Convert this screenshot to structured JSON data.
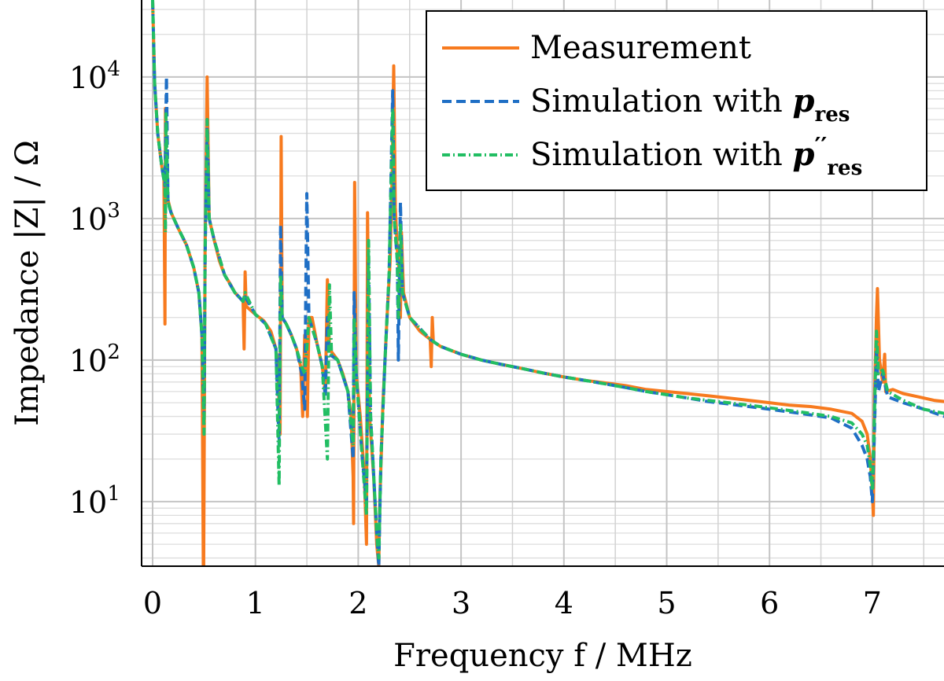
{
  "chart_data": {
    "type": "line",
    "title": "",
    "xlabel": "Frequency f / MHz",
    "ylabel": "Impedance |Z| / Ω",
    "xlim": [
      0,
      7.7
    ],
    "ylim": [
      3.5,
      35000
    ],
    "yscale": "log",
    "grid": true,
    "legend_position": "top-right",
    "x_ticks": [
      "0",
      "1",
      "2",
      "3",
      "4",
      "5",
      "6",
      "7"
    ],
    "y_ticks": [
      {
        "base": "10",
        "exp": "1",
        "value": 10
      },
      {
        "base": "10",
        "exp": "2",
        "value": 100
      },
      {
        "base": "10",
        "exp": "3",
        "value": 1000
      },
      {
        "base": "10",
        "exp": "4",
        "value": 10000
      }
    ],
    "series": [
      {
        "name": "Measurement",
        "legend_label": "Measurement",
        "legend_sub": "",
        "legend_prime": "",
        "color": "#F77A1E",
        "dash": "solid",
        "points": [
          [
            0.0,
            35000
          ],
          [
            0.02,
            9000
          ],
          [
            0.05,
            4000
          ],
          [
            0.09,
            2300
          ],
          [
            0.11,
            1900
          ],
          [
            0.12,
            180
          ],
          [
            0.125,
            6000
          ],
          [
            0.135,
            1500
          ],
          [
            0.18,
            1100
          ],
          [
            0.25,
            850
          ],
          [
            0.33,
            650
          ],
          [
            0.4,
            450
          ],
          [
            0.45,
            300
          ],
          [
            0.48,
            150
          ],
          [
            0.495,
            2.0
          ],
          [
            0.51,
            600
          ],
          [
            0.53,
            10000
          ],
          [
            0.55,
            1000
          ],
          [
            0.6,
            700
          ],
          [
            0.65,
            500
          ],
          [
            0.7,
            400
          ],
          [
            0.75,
            350
          ],
          [
            0.8,
            300
          ],
          [
            0.88,
            260
          ],
          [
            0.89,
            120
          ],
          [
            0.9,
            420
          ],
          [
            0.91,
            240
          ],
          [
            1.0,
            210
          ],
          [
            1.08,
            190
          ],
          [
            1.15,
            160
          ],
          [
            1.2,
            120
          ],
          [
            1.22,
            80
          ],
          [
            1.24,
            30
          ],
          [
            1.25,
            3800
          ],
          [
            1.26,
            200
          ],
          [
            1.3,
            180
          ],
          [
            1.35,
            150
          ],
          [
            1.4,
            120
          ],
          [
            1.44,
            90
          ],
          [
            1.46,
            40
          ],
          [
            1.48,
            150
          ],
          [
            1.5,
            120
          ],
          [
            1.505,
            40
          ],
          [
            1.52,
            200
          ],
          [
            1.55,
            200
          ],
          [
            1.6,
            130
          ],
          [
            1.65,
            90
          ],
          [
            1.68,
            60
          ],
          [
            1.7,
            370
          ],
          [
            1.72,
            120
          ],
          [
            1.8,
            100
          ],
          [
            1.85,
            80
          ],
          [
            1.9,
            60
          ],
          [
            1.93,
            40
          ],
          [
            1.95,
            15
          ],
          [
            1.955,
            7
          ],
          [
            1.965,
            1800
          ],
          [
            1.98,
            80
          ],
          [
            2.02,
            40
          ],
          [
            2.06,
            15
          ],
          [
            2.08,
            5
          ],
          [
            2.09,
            1100
          ],
          [
            2.11,
            40
          ],
          [
            2.15,
            15
          ],
          [
            2.18,
            5
          ],
          [
            2.2,
            3.5
          ],
          [
            2.21,
            10
          ],
          [
            2.24,
            50
          ],
          [
            2.28,
            200
          ],
          [
            2.31,
            500
          ],
          [
            2.33,
            2000
          ],
          [
            2.345,
            12000
          ],
          [
            2.36,
            1200
          ],
          [
            2.38,
            600
          ],
          [
            2.4,
            400
          ],
          [
            2.41,
            200
          ],
          [
            2.42,
            800
          ],
          [
            2.44,
            300
          ],
          [
            2.5,
            200
          ],
          [
            2.6,
            160
          ],
          [
            2.7,
            140
          ],
          [
            2.71,
            90
          ],
          [
            2.72,
            200
          ],
          [
            2.73,
            135
          ],
          [
            2.8,
            125
          ],
          [
            3.0,
            110
          ],
          [
            3.2,
            100
          ],
          [
            3.4,
            93
          ],
          [
            3.6,
            87
          ],
          [
            3.8,
            81
          ],
          [
            4.0,
            76
          ],
          [
            4.2,
            72
          ],
          [
            4.4,
            69
          ],
          [
            4.6,
            66
          ],
          [
            4.8,
            62
          ],
          [
            5.0,
            60
          ],
          [
            5.2,
            58
          ],
          [
            5.4,
            56
          ],
          [
            5.6,
            54
          ],
          [
            5.8,
            52
          ],
          [
            6.0,
            50
          ],
          [
            6.2,
            48
          ],
          [
            6.4,
            47
          ],
          [
            6.6,
            45
          ],
          [
            6.8,
            42
          ],
          [
            6.9,
            37
          ],
          [
            6.95,
            30
          ],
          [
            6.98,
            20
          ],
          [
            7.0,
            12
          ],
          [
            7.01,
            8
          ],
          [
            7.02,
            50
          ],
          [
            7.04,
            200
          ],
          [
            7.05,
            320
          ],
          [
            7.07,
            100
          ],
          [
            7.1,
            70
          ],
          [
            7.12,
            110
          ],
          [
            7.13,
            60
          ],
          [
            7.2,
            62
          ],
          [
            7.3,
            58
          ],
          [
            7.45,
            55
          ],
          [
            7.6,
            52
          ],
          [
            7.7,
            51
          ]
        ]
      },
      {
        "name": "Simulation with p_res",
        "legend_label": "Simulation with p",
        "legend_sub": "res",
        "legend_prime": "",
        "color": "#1F6FC5",
        "dash": "12 6",
        "points": [
          [
            0.0,
            35000
          ],
          [
            0.02,
            9000
          ],
          [
            0.05,
            4000
          ],
          [
            0.09,
            2300
          ],
          [
            0.12,
            1700
          ],
          [
            0.135,
            10000
          ],
          [
            0.15,
            1300
          ],
          [
            0.18,
            1100
          ],
          [
            0.25,
            850
          ],
          [
            0.33,
            650
          ],
          [
            0.4,
            450
          ],
          [
            0.45,
            300
          ],
          [
            0.48,
            150
          ],
          [
            0.5,
            40
          ],
          [
            0.51,
            500
          ],
          [
            0.53,
            5000
          ],
          [
            0.55,
            1000
          ],
          [
            0.6,
            700
          ],
          [
            0.7,
            400
          ],
          [
            0.8,
            300
          ],
          [
            0.88,
            260
          ],
          [
            0.9,
            280
          ],
          [
            1.0,
            210
          ],
          [
            1.1,
            180
          ],
          [
            1.2,
            120
          ],
          [
            1.23,
            25
          ],
          [
            1.245,
            900
          ],
          [
            1.26,
            200
          ],
          [
            1.3,
            180
          ],
          [
            1.35,
            150
          ],
          [
            1.4,
            120
          ],
          [
            1.45,
            80
          ],
          [
            1.48,
            45
          ],
          [
            1.49,
            300
          ],
          [
            1.5,
            1500
          ],
          [
            1.52,
            200
          ],
          [
            1.6,
            130
          ],
          [
            1.65,
            90
          ],
          [
            1.68,
            55
          ],
          [
            1.7,
            200
          ],
          [
            1.72,
            110
          ],
          [
            1.8,
            100
          ],
          [
            1.9,
            60
          ],
          [
            1.95,
            20
          ],
          [
            1.96,
            300
          ],
          [
            1.98,
            80
          ],
          [
            2.04,
            20
          ],
          [
            2.08,
            10
          ],
          [
            2.1,
            500
          ],
          [
            2.12,
            40
          ],
          [
            2.18,
            6
          ],
          [
            2.2,
            3.5
          ],
          [
            2.22,
            20
          ],
          [
            2.26,
            100
          ],
          [
            2.3,
            400
          ],
          [
            2.335,
            8000
          ],
          [
            2.35,
            1000
          ],
          [
            2.38,
            500
          ],
          [
            2.39,
            100
          ],
          [
            2.41,
            1300
          ],
          [
            2.43,
            300
          ],
          [
            2.5,
            200
          ],
          [
            2.7,
            140
          ],
          [
            2.8,
            125
          ],
          [
            3.0,
            110
          ],
          [
            3.2,
            100
          ],
          [
            3.4,
            93
          ],
          [
            3.6,
            87
          ],
          [
            3.8,
            81
          ],
          [
            4.0,
            76
          ],
          [
            4.2,
            72
          ],
          [
            4.4,
            68
          ],
          [
            4.6,
            64
          ],
          [
            4.8,
            60
          ],
          [
            5.0,
            57
          ],
          [
            5.2,
            54
          ],
          [
            5.4,
            51
          ],
          [
            5.6,
            49
          ],
          [
            5.8,
            47
          ],
          [
            6.0,
            45
          ],
          [
            6.2,
            43
          ],
          [
            6.4,
            41
          ],
          [
            6.6,
            39
          ],
          [
            6.8,
            33
          ],
          [
            6.9,
            25
          ],
          [
            6.95,
            20
          ],
          [
            6.98,
            15
          ],
          [
            7.0,
            10
          ],
          [
            7.02,
            30
          ],
          [
            7.04,
            120
          ],
          [
            7.06,
            60
          ],
          [
            7.1,
            80
          ],
          [
            7.15,
            55
          ],
          [
            7.3,
            50
          ],
          [
            7.5,
            45
          ],
          [
            7.7,
            40
          ]
        ]
      },
      {
        "name": "Simulation with p''_res",
        "legend_label": "Simulation with p",
        "legend_sub": "res",
        "legend_prime": "′′",
        "color": "#22BE63",
        "dash": "10 4 2 4",
        "points": [
          [
            0.0,
            35000
          ],
          [
            0.02,
            9000
          ],
          [
            0.05,
            4000
          ],
          [
            0.09,
            2300
          ],
          [
            0.12,
            1700
          ],
          [
            0.125,
            800
          ],
          [
            0.13,
            5500
          ],
          [
            0.15,
            1300
          ],
          [
            0.18,
            1100
          ],
          [
            0.25,
            850
          ],
          [
            0.33,
            650
          ],
          [
            0.4,
            450
          ],
          [
            0.45,
            300
          ],
          [
            0.48,
            150
          ],
          [
            0.5,
            30
          ],
          [
            0.51,
            600
          ],
          [
            0.53,
            5000
          ],
          [
            0.55,
            1000
          ],
          [
            0.6,
            700
          ],
          [
            0.7,
            400
          ],
          [
            0.8,
            300
          ],
          [
            0.88,
            260
          ],
          [
            0.9,
            300
          ],
          [
            1.0,
            210
          ],
          [
            1.1,
            180
          ],
          [
            1.2,
            120
          ],
          [
            1.23,
            13
          ],
          [
            1.245,
            400
          ],
          [
            1.26,
            200
          ],
          [
            1.3,
            180
          ],
          [
            1.35,
            150
          ],
          [
            1.4,
            120
          ],
          [
            1.45,
            90
          ],
          [
            1.48,
            80
          ],
          [
            1.5,
            120
          ],
          [
            1.52,
            200
          ],
          [
            1.6,
            130
          ],
          [
            1.65,
            90
          ],
          [
            1.7,
            20
          ],
          [
            1.72,
            340
          ],
          [
            1.74,
            110
          ],
          [
            1.8,
            100
          ],
          [
            1.9,
            60
          ],
          [
            1.95,
            25
          ],
          [
            1.96,
            200
          ],
          [
            1.98,
            80
          ],
          [
            2.04,
            20
          ],
          [
            2.08,
            8
          ],
          [
            2.1,
            700
          ],
          [
            2.12,
            40
          ],
          [
            2.18,
            6
          ],
          [
            2.2,
            4
          ],
          [
            2.22,
            20
          ],
          [
            2.26,
            100
          ],
          [
            2.3,
            400
          ],
          [
            2.335,
            6000
          ],
          [
            2.35,
            1000
          ],
          [
            2.38,
            500
          ],
          [
            2.39,
            200
          ],
          [
            2.41,
            900
          ],
          [
            2.43,
            300
          ],
          [
            2.5,
            200
          ],
          [
            2.7,
            140
          ],
          [
            2.8,
            125
          ],
          [
            3.0,
            110
          ],
          [
            3.2,
            100
          ],
          [
            3.4,
            93
          ],
          [
            3.6,
            87
          ],
          [
            3.8,
            81
          ],
          [
            4.0,
            76
          ],
          [
            4.2,
            72
          ],
          [
            4.4,
            68
          ],
          [
            4.6,
            64
          ],
          [
            4.8,
            60
          ],
          [
            5.0,
            57
          ],
          [
            5.2,
            54
          ],
          [
            5.4,
            52
          ],
          [
            5.6,
            50
          ],
          [
            5.8,
            48
          ],
          [
            6.0,
            46
          ],
          [
            6.2,
            44
          ],
          [
            6.4,
            42
          ],
          [
            6.6,
            40
          ],
          [
            6.8,
            36
          ],
          [
            6.9,
            30
          ],
          [
            6.95,
            25
          ],
          [
            6.98,
            18
          ],
          [
            7.0,
            12
          ],
          [
            7.02,
            40
          ],
          [
            7.04,
            160
          ],
          [
            7.06,
            80
          ],
          [
            7.1,
            85
          ],
          [
            7.15,
            60
          ],
          [
            7.3,
            52
          ],
          [
            7.5,
            45
          ],
          [
            7.7,
            42
          ]
        ]
      }
    ]
  }
}
